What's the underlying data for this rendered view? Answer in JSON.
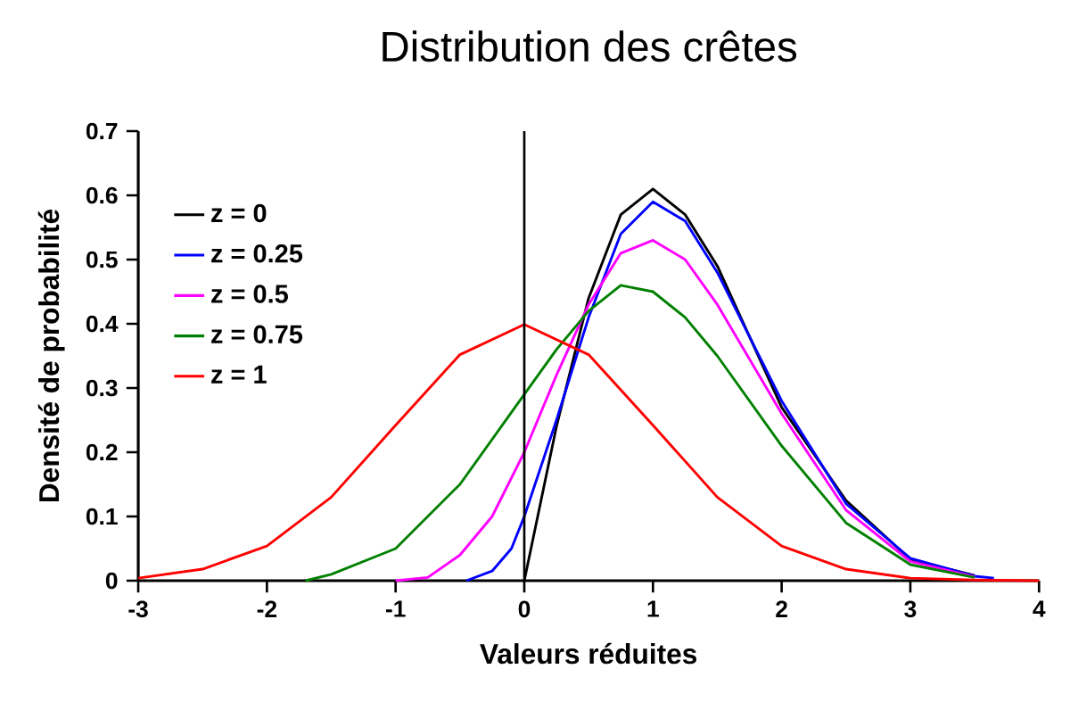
{
  "chart_data": {
    "type": "line",
    "title": "Distribution des crêtes",
    "xlabel": "Valeurs réduites",
    "ylabel": "Densité de probabilité",
    "xlim": [
      -3,
      4
    ],
    "ylim": [
      0,
      0.7
    ],
    "xticks": [
      -3,
      -2,
      -1,
      0,
      1,
      2,
      3,
      4
    ],
    "yticks": [
      0,
      0.1,
      0.2,
      0.3,
      0.4,
      0.5,
      0.6,
      0.7
    ],
    "grid": false,
    "legend": "top left",
    "marker": "none",
    "line_style": "solid",
    "ref_lines": [
      {
        "axis": "x",
        "value": 0,
        "color": "#000000"
      }
    ],
    "series": [
      {
        "name": "z = 0",
        "color": "#000000",
        "x": [
          0,
          0.25,
          0.5,
          0.75,
          1,
          1.25,
          1.5,
          2,
          2.5,
          3,
          3.5
        ],
        "values": [
          0,
          0.24,
          0.44,
          0.57,
          0.61,
          0.57,
          0.49,
          0.27,
          0.125,
          0.033,
          0.008
        ]
      },
      {
        "name": "z = 0.25",
        "color": "#0000ff",
        "x": [
          -0.45,
          -0.25,
          -0.1,
          0,
          0.25,
          0.5,
          0.75,
          1,
          1.25,
          1.5,
          2,
          2.5,
          3,
          3.5,
          3.65
        ],
        "values": [
          0,
          0.015,
          0.05,
          0.1,
          0.25,
          0.41,
          0.54,
          0.59,
          0.56,
          0.48,
          0.28,
          0.12,
          0.035,
          0.007,
          0.004
        ]
      },
      {
        "name": "z = 0.5",
        "color": "#ff00ff",
        "x": [
          -1,
          -0.75,
          -0.5,
          -0.25,
          0,
          0.25,
          0.5,
          0.75,
          1,
          1.25,
          1.5,
          2,
          2.5,
          3,
          3.5
        ],
        "values": [
          0,
          0.005,
          0.04,
          0.1,
          0.2,
          0.32,
          0.43,
          0.51,
          0.53,
          0.5,
          0.43,
          0.26,
          0.11,
          0.03,
          0.006
        ]
      },
      {
        "name": "z = 0.75",
        "color": "#008000",
        "x": [
          -1.7,
          -1.5,
          -1,
          -0.5,
          0,
          0.25,
          0.5,
          0.75,
          1,
          1.25,
          1.5,
          2,
          2.5,
          3,
          3.5
        ],
        "values": [
          0,
          0.01,
          0.05,
          0.15,
          0.29,
          0.36,
          0.42,
          0.46,
          0.45,
          0.41,
          0.35,
          0.21,
          0.09,
          0.025,
          0.005
        ]
      },
      {
        "name": "z = 1",
        "color": "#ff0000",
        "x": [
          -3,
          -2.5,
          -2,
          -1.5,
          -1,
          -0.5,
          0,
          0.5,
          1,
          1.5,
          2,
          2.5,
          3,
          3.5,
          4
        ],
        "values": [
          0.004,
          0.018,
          0.054,
          0.13,
          0.242,
          0.352,
          0.399,
          0.352,
          0.242,
          0.13,
          0.054,
          0.018,
          0.004,
          0.001,
          0
        ]
      }
    ]
  }
}
